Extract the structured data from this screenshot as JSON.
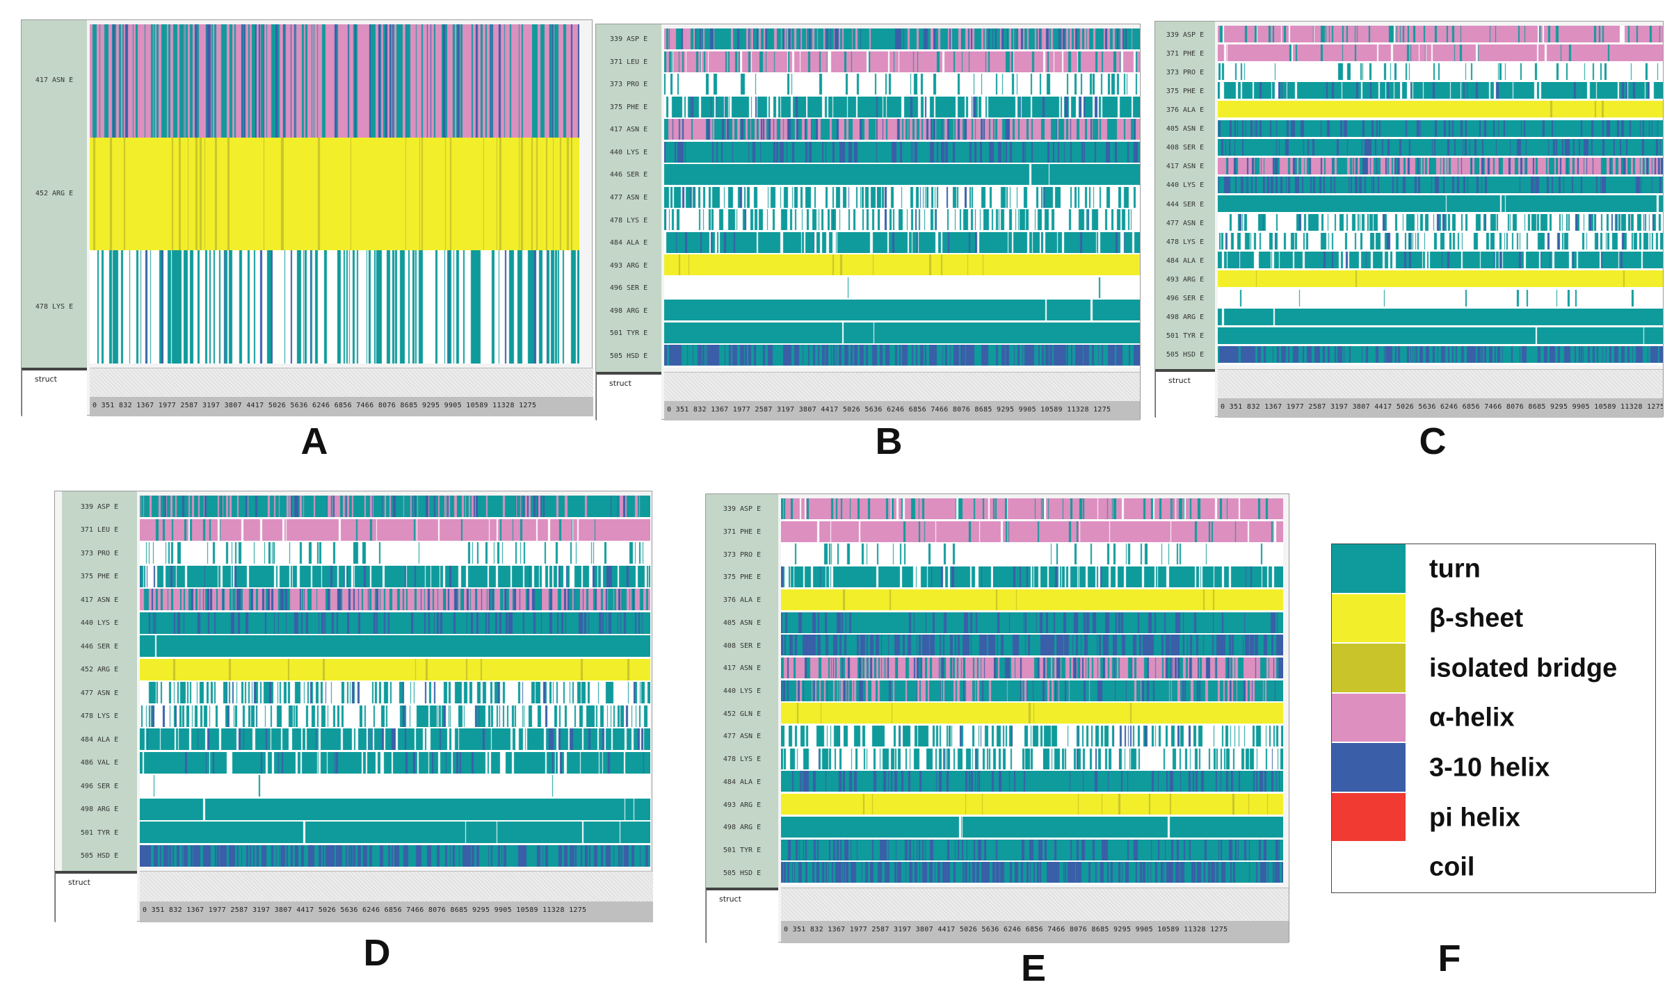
{
  "axis_ticks": "0 351 832 1367 1977 2587 3197 3807 4417 5026 5636 6246 6856 7466 8076 8685 9295 9905 10589 11328    1275",
  "struct_tab_label": "struct",
  "colors": {
    "turn": "#0f9b9b",
    "beta_sheet": "#f2ef2a",
    "isolated_bridge": "#c8c42a",
    "alpha_helix": "#dd8fc0",
    "helix_3_10": "#3a5ea8",
    "pi_helix": "#f03a32",
    "coil": "#ffffff"
  },
  "panels": [
    {
      "id": "A",
      "letter": "A",
      "rows": [
        {
          "label": "417 ASN E",
          "type": "alpha_mix"
        },
        {
          "label": "452 ARG E",
          "type": "sheet"
        },
        {
          "label": "478 LYS E",
          "type": "coil_turn"
        }
      ]
    },
    {
      "id": "B",
      "letter": "B",
      "rows": [
        {
          "label": "339 ASP E",
          "type": "turn_alpha"
        },
        {
          "label": "371 LEU E",
          "type": "alpha_turn"
        },
        {
          "label": "373 PRO E",
          "type": "coil_sparse"
        },
        {
          "label": "375 PHE E",
          "type": "turn_dense"
        },
        {
          "label": "417 ASN E",
          "type": "alpha_mix"
        },
        {
          "label": "440 LYS E",
          "type": "turn_310"
        },
        {
          "label": "446 SER E",
          "type": "turn_solid"
        },
        {
          "label": "477 ASN E",
          "type": "coil_turn"
        },
        {
          "label": "478 LYS E",
          "type": "coil_turn"
        },
        {
          "label": "484 ALA E",
          "type": "turn_dense"
        },
        {
          "label": "493 ARG E",
          "type": "sheet_solid"
        },
        {
          "label": "496 SER E",
          "type": "coil_empty"
        },
        {
          "label": "498 ARG E",
          "type": "turn_solid"
        },
        {
          "label": "501 TYR E",
          "type": "turn_solid"
        },
        {
          "label": "505 HSD E",
          "type": "h310_turn"
        }
      ]
    },
    {
      "id": "C",
      "letter": "C",
      "rows": [
        {
          "label": "339 ASP E",
          "type": "alpha_turn"
        },
        {
          "label": "371 PHE E",
          "type": "alpha_solid"
        },
        {
          "label": "373 PRO E",
          "type": "coil_sparse"
        },
        {
          "label": "375 PHE E",
          "type": "turn_dense"
        },
        {
          "label": "376 ALA E",
          "type": "sheet_solid"
        },
        {
          "label": "405 ASN E",
          "type": "turn_310"
        },
        {
          "label": "408 SER E",
          "type": "turn_310"
        },
        {
          "label": "417 ASN E",
          "type": "alpha_mix"
        },
        {
          "label": "440 LYS E",
          "type": "turn_310"
        },
        {
          "label": "444 SER E",
          "type": "turn_solid"
        },
        {
          "label": "477 ASN E",
          "type": "coil_turn"
        },
        {
          "label": "478 LYS E",
          "type": "coil_turn"
        },
        {
          "label": "484 ALA E",
          "type": "turn_dense"
        },
        {
          "label": "493 ARG E",
          "type": "sheet_solid"
        },
        {
          "label": "496 SER E",
          "type": "coil_empty"
        },
        {
          "label": "498 ARG E",
          "type": "turn_solid"
        },
        {
          "label": "501 TYR E",
          "type": "turn_solid"
        },
        {
          "label": "505 HSD E",
          "type": "h310_turn"
        }
      ]
    },
    {
      "id": "D",
      "letter": "D",
      "rows": [
        {
          "label": "339 ASP E",
          "type": "turn_alpha"
        },
        {
          "label": "371 LEU E",
          "type": "alpha_solid"
        },
        {
          "label": "373 PRO E",
          "type": "coil_sparse"
        },
        {
          "label": "375 PHE E",
          "type": "turn_dense"
        },
        {
          "label": "417 ASN E",
          "type": "alpha_mix"
        },
        {
          "label": "440 LYS E",
          "type": "turn_310"
        },
        {
          "label": "446 SER E",
          "type": "turn_solid"
        },
        {
          "label": "452 ARG E",
          "type": "sheet_solid"
        },
        {
          "label": "477 ASN E",
          "type": "coil_turn"
        },
        {
          "label": "478 LYS E",
          "type": "coil_turn"
        },
        {
          "label": "484 ALA E",
          "type": "turn_dense"
        },
        {
          "label": "486 VAL E",
          "type": "turn_dense"
        },
        {
          "label": "496 SER E",
          "type": "coil_empty"
        },
        {
          "label": "498 ARG E",
          "type": "turn_solid"
        },
        {
          "label": "501 TYR E",
          "type": "turn_solid"
        },
        {
          "label": "505 HSD E",
          "type": "h310_turn"
        }
      ]
    },
    {
      "id": "E",
      "letter": "E",
      "rows": [
        {
          "label": "339 ASP E",
          "type": "alpha_turn"
        },
        {
          "label": "371 PHE E",
          "type": "alpha_solid"
        },
        {
          "label": "373 PRO E",
          "type": "coil_sparse"
        },
        {
          "label": "375 PHE E",
          "type": "turn_dense"
        },
        {
          "label": "376 ALA E",
          "type": "sheet_solid"
        },
        {
          "label": "405 ASN E",
          "type": "turn_310"
        },
        {
          "label": "408 SER E",
          "type": "h310_turn"
        },
        {
          "label": "417 ASN E",
          "type": "alpha_mix"
        },
        {
          "label": "440 LYS E",
          "type": "turn_alpha"
        },
        {
          "label": "452 GLN E",
          "type": "sheet_solid"
        },
        {
          "label": "477 ASN E",
          "type": "coil_turn"
        },
        {
          "label": "478 LYS E",
          "type": "coil_turn"
        },
        {
          "label": "484 ALA E",
          "type": "turn_310"
        },
        {
          "label": "493 ARG E",
          "type": "sheet_solid"
        },
        {
          "label": "498 ARG E",
          "type": "turn_solid"
        },
        {
          "label": "501 TYR E",
          "type": "turn_310"
        },
        {
          "label": "505 HSD E",
          "type": "h310_turn"
        }
      ]
    }
  ],
  "letter_F": "F",
  "legend": [
    {
      "key": "turn",
      "label": "turn"
    },
    {
      "key": "beta_sheet",
      "label": "β-sheet"
    },
    {
      "key": "isolated_bridge",
      "label": "isolated bridge"
    },
    {
      "key": "alpha_helix",
      "label": "α-helix"
    },
    {
      "key": "helix_3_10",
      "label": "3-10 helix"
    },
    {
      "key": "pi_helix",
      "label": "pi helix"
    },
    {
      "key": "coil",
      "label": "coil"
    }
  ]
}
